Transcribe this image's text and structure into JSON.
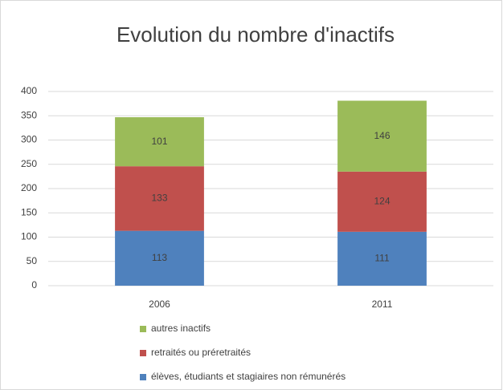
{
  "chart_data": {
    "type": "stacked_bar",
    "title": "Evolution du nombre d'inactifs",
    "categories": [
      "2006",
      "2011"
    ],
    "series": [
      {
        "name": "élèves, étudiants et stagiaires non rémunérés",
        "color": "#4f81bd",
        "values": [
          113,
          111
        ]
      },
      {
        "name": "retraités ou préretraités",
        "color": "#c0504d",
        "values": [
          133,
          124
        ]
      },
      {
        "name": "autres inactifs",
        "color": "#9bbb59",
        "values": [
          101,
          146
        ]
      }
    ],
    "ylim": [
      0,
      400
    ],
    "yticks": [
      0,
      50,
      100,
      150,
      200,
      250,
      300,
      350,
      400
    ],
    "grid": true,
    "legend": "bottom"
  }
}
